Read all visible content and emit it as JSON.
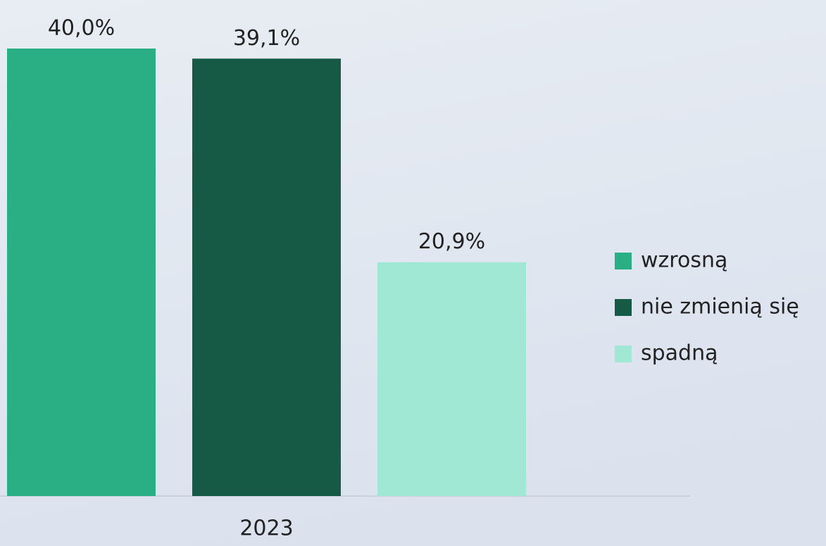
{
  "chart_data": {
    "type": "bar",
    "categories": [
      "2023"
    ],
    "series": [
      {
        "name": "wzrosną",
        "color": "#2aae84",
        "values": [
          40.0
        ],
        "value_labels": [
          "40,0%"
        ]
      },
      {
        "name": "nie zmienią się",
        "color": "#165a45",
        "values": [
          39.1
        ],
        "value_labels": [
          "39,1%"
        ]
      },
      {
        "name": "spadną",
        "color": "#a0e8d3",
        "values": [
          20.9
        ],
        "value_labels": [
          "20,9%"
        ]
      }
    ],
    "ylim": [
      0,
      40
    ],
    "legend": "right"
  }
}
